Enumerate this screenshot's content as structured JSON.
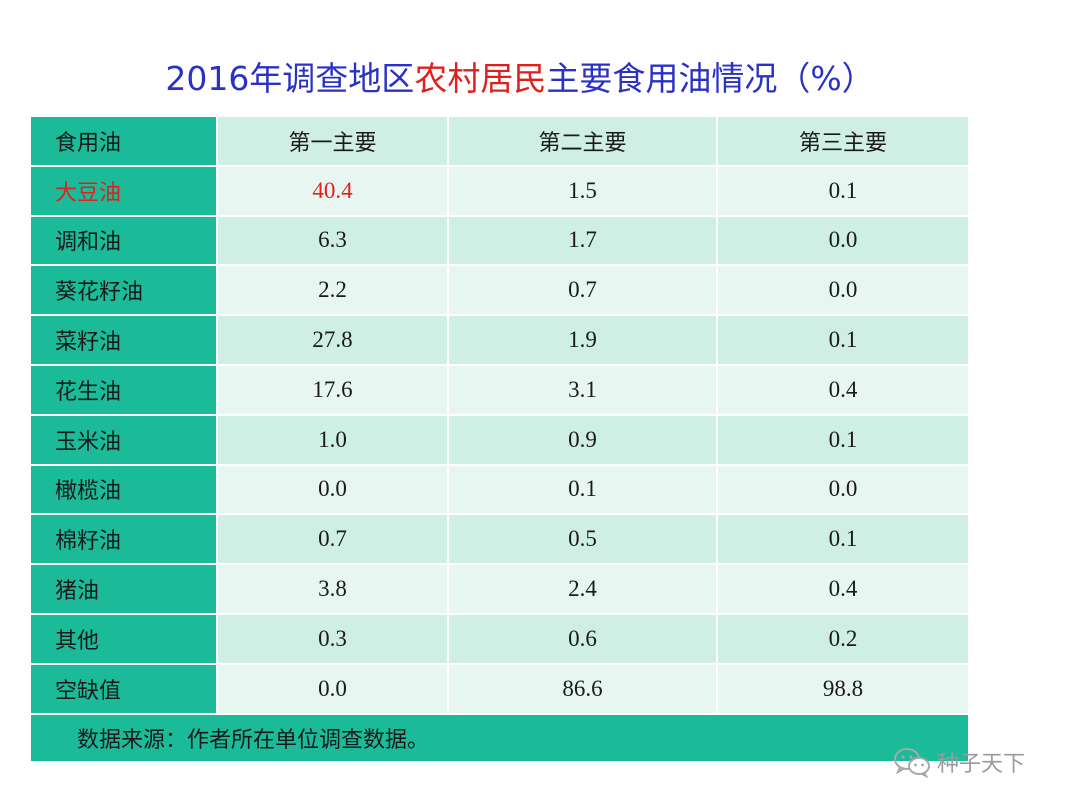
{
  "title": {
    "prefix": "2016年调查地区",
    "highlight": "农村居民",
    "suffix": "主要食用油情况（%）"
  },
  "table": {
    "headers": [
      "食用油",
      "第一主要",
      "第二主要",
      "第三主要"
    ],
    "rows": [
      {
        "name": "大豆油",
        "values": [
          "40.4",
          "1.5",
          "0.1"
        ]
      },
      {
        "name": "调和油",
        "values": [
          "6.3",
          "1.7",
          "0.0"
        ]
      },
      {
        "name": "葵花籽油",
        "values": [
          "2.2",
          "0.7",
          "0.0"
        ]
      },
      {
        "name": "菜籽油",
        "values": [
          "27.8",
          "1.9",
          "0.1"
        ]
      },
      {
        "name": "花生油",
        "values": [
          "17.6",
          "3.1",
          "0.4"
        ]
      },
      {
        "name": "玉米油",
        "values": [
          "1.0",
          "0.9",
          "0.1"
        ]
      },
      {
        "name": "橄榄油",
        "values": [
          "0.0",
          "0.1",
          "0.0"
        ]
      },
      {
        "name": "棉籽油",
        "values": [
          "0.7",
          "0.5",
          "0.1"
        ]
      },
      {
        "name": "猪油",
        "values": [
          "3.8",
          "2.4",
          "0.4"
        ]
      },
      {
        "name": "其他",
        "values": [
          "0.3",
          "0.6",
          "0.2"
        ]
      },
      {
        "name": "空缺值",
        "values": [
          "0.0",
          "86.6",
          "98.8"
        ]
      }
    ],
    "footnote": "数据来源：作者所在单位调查数据。"
  },
  "watermark": {
    "icon": "wechat-icon",
    "text": "种子天下"
  },
  "colors": {
    "title_blue": "#2a32c4",
    "highlight_red": "#e0201c",
    "teal": "#1bbb9a",
    "light_green": "#cfeee4",
    "lighter_green": "#e7f6f1"
  }
}
